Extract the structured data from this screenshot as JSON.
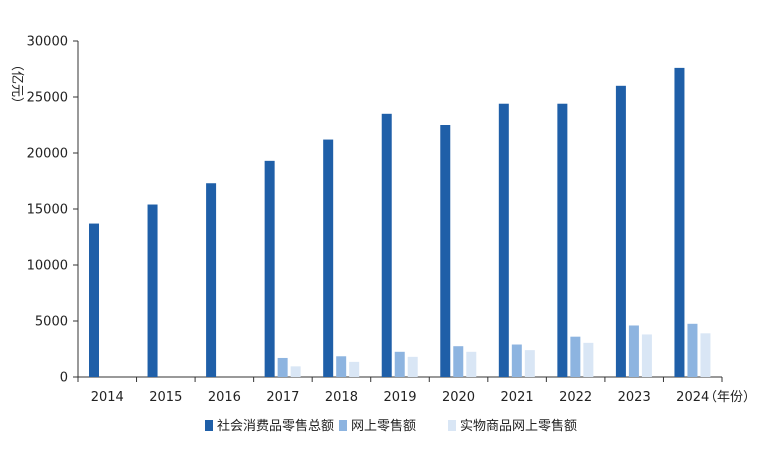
{
  "chart_data": {
    "type": "bar",
    "title": "",
    "y_unit": "（亿元）",
    "x_unit": "（年份）",
    "ylim": [
      0,
      30000
    ],
    "yticks": [
      0,
      5000,
      10000,
      15000,
      20000,
      25000,
      30000
    ],
    "grid": false,
    "legend_position": "bottom",
    "categories": [
      "2014",
      "2015",
      "2016",
      "2017",
      "2018",
      "2019",
      "2020",
      "2021",
      "2022",
      "2023",
      "2024"
    ],
    "series": [
      {
        "name": "社会消费品零售总额",
        "color": "#1f5fa8",
        "values": [
          13700,
          15400,
          17300,
          19300,
          21200,
          23500,
          22500,
          24400,
          24400,
          26000,
          27600
        ]
      },
      {
        "name": "网上零售额",
        "color": "#8db4e0",
        "values": [
          null,
          null,
          null,
          1700,
          1850,
          2250,
          2750,
          2900,
          3600,
          4600,
          4750
        ]
      },
      {
        "name": "实物商品网上零售额",
        "color": "#d9e6f5",
        "values": [
          null,
          null,
          null,
          950,
          1350,
          1800,
          2250,
          2400,
          3050,
          3800,
          3900
        ]
      }
    ]
  }
}
